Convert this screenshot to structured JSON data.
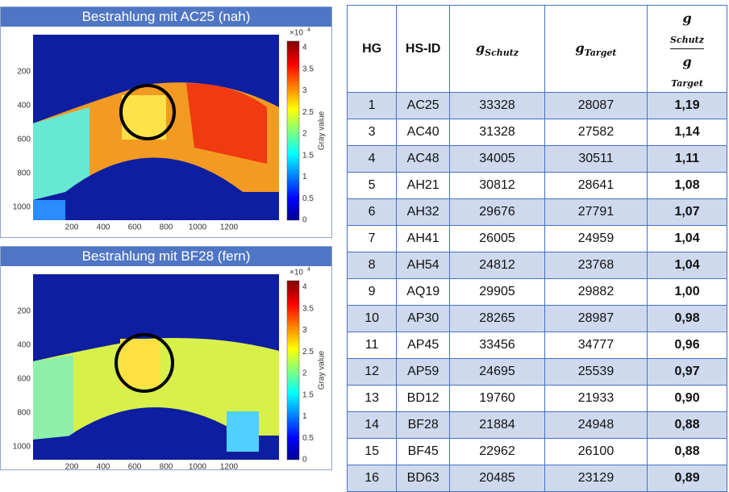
{
  "panels": [
    {
      "title": "Bestrahlung mit AC25 (nah)",
      "x_ticks": [
        "200",
        "400",
        "600",
        "800",
        "1000",
        "1200"
      ],
      "y_ticks": [
        "200",
        "400",
        "600",
        "800",
        "1000"
      ],
      "colorbar": {
        "multiplier": "×10",
        "exponent": "4",
        "ticks": [
          "4",
          "3.5",
          "3",
          "2.5",
          "2",
          "1.5",
          "1",
          "0.5",
          "0"
        ],
        "label": "Gray value"
      }
    },
    {
      "title": "Bestrahlung mit BF28 (fern)",
      "x_ticks": [
        "200",
        "400",
        "600",
        "800",
        "1000",
        "1200"
      ],
      "y_ticks": [
        "200",
        "400",
        "600",
        "800",
        "1000"
      ],
      "colorbar": {
        "multiplier": "×10",
        "exponent": "4",
        "ticks": [
          "4",
          "3.5",
          "3",
          "2.5",
          "2",
          "1.5",
          "1",
          "0.5",
          "0"
        ],
        "label": "Gray value"
      }
    }
  ],
  "table": {
    "header": [
      "HG",
      "HS-ID",
      {
        "base": "g",
        "sub": "Schutz"
      },
      {
        "base": "g",
        "sub": "Target"
      },
      {
        "numerator": {
          "base": "g",
          "sub": "Schutz"
        },
        "denominator": {
          "base": "g",
          "sub": "Target"
        }
      }
    ],
    "rows": [
      [
        "1",
        "AC25",
        "33328",
        "28087",
        "1,19"
      ],
      [
        "3",
        "AC40",
        "31328",
        "27582",
        "1,14"
      ],
      [
        "4",
        "AC48",
        "34005",
        "30511",
        "1,11"
      ],
      [
        "5",
        "AH21",
        "30812",
        "28641",
        "1,08"
      ],
      [
        "6",
        "AH32",
        "29676",
        "27791",
        "1,07"
      ],
      [
        "7",
        "AH41",
        "26005",
        "24959",
        "1,04"
      ],
      [
        "8",
        "AH54",
        "24812",
        "23768",
        "1,04"
      ],
      [
        "9",
        "AQ19",
        "29905",
        "29882",
        "1,00"
      ],
      [
        "10",
        "AP30",
        "28265",
        "28987",
        "0,98"
      ],
      [
        "11",
        "AP45",
        "33456",
        "34777",
        "0,96"
      ],
      [
        "12",
        "AP59",
        "24695",
        "25539",
        "0,97"
      ],
      [
        "13",
        "BD12",
        "19760",
        "21933",
        "0,90"
      ],
      [
        "14",
        "BF28",
        "21884",
        "24948",
        "0,88"
      ],
      [
        "15",
        "BF45",
        "22962",
        "26100",
        "0,88"
      ],
      [
        "16",
        "BD63",
        "20485",
        "23129",
        "0,89"
      ]
    ]
  }
}
